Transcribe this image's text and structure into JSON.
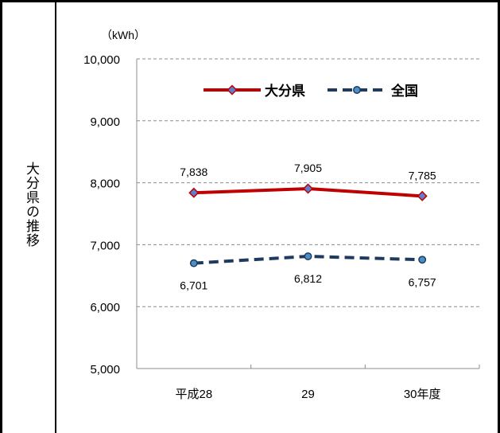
{
  "side_label": "大分県の推移",
  "chart_data": {
    "type": "line",
    "unit_label": "（kWh）",
    "categories": [
      "平成28",
      "29",
      "30年度"
    ],
    "ylim": [
      5000,
      10000
    ],
    "yticks": [
      5000,
      6000,
      7000,
      8000,
      9000,
      10000
    ],
    "ytick_labels": [
      "5,000",
      "6,000",
      "7,000",
      "8,000",
      "9,000",
      "10,000"
    ],
    "grid": true,
    "legend_position": "top-right",
    "series": [
      {
        "name": "大分県",
        "values": [
          7838,
          7905,
          7785
        ],
        "labels": [
          "7,838",
          "7,905",
          "7,785"
        ],
        "color": "#c00000",
        "marker_color": "#5b7fd1",
        "dash": "solid",
        "marker": "diamond"
      },
      {
        "name": "全国",
        "values": [
          6701,
          6812,
          6757
        ],
        "labels": [
          "6,701",
          "6,812",
          "6,757"
        ],
        "color": "#1f3a5f",
        "marker_color": "#4a90c8",
        "dash": "dashed",
        "marker": "circle"
      }
    ]
  }
}
